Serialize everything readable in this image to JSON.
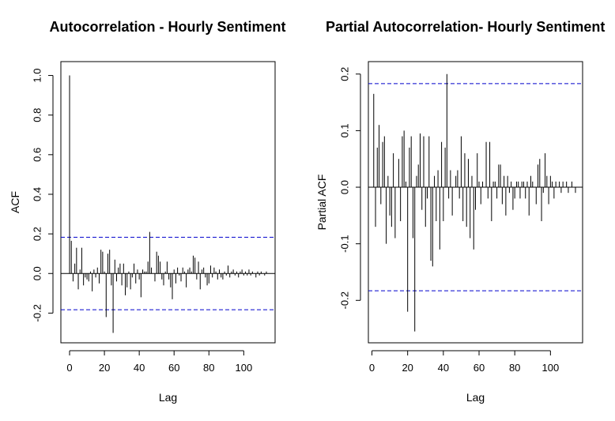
{
  "chart_data": [
    {
      "type": "bar",
      "title": "Autocorrelation - Hourly Sentiment",
      "xlabel": "Lag",
      "ylabel": "ACF",
      "xlim": [
        -5,
        118
      ],
      "ylim": [
        -0.35,
        1.07
      ],
      "xticks": [
        0,
        20,
        40,
        60,
        80,
        100
      ],
      "yticks": [
        -0.2,
        0.0,
        0.2,
        0.4,
        0.6,
        0.8,
        1.0
      ],
      "ytick_labels": [
        "-0.2",
        "0.0",
        "0.2",
        "0.4",
        "0.6",
        "0.8",
        "1.0"
      ],
      "confidence_band": [
        -0.183,
        0.183
      ],
      "confidence_color": "#0000cc",
      "bar_color": "#000000",
      "grid": false,
      "lags": [
        0,
        1,
        2,
        3,
        4,
        5,
        6,
        7,
        8,
        9,
        10,
        11,
        12,
        13,
        14,
        15,
        16,
        17,
        18,
        19,
        20,
        21,
        22,
        23,
        24,
        25,
        26,
        27,
        28,
        29,
        30,
        31,
        32,
        33,
        34,
        35,
        36,
        37,
        38,
        39,
        40,
        41,
        42,
        43,
        44,
        45,
        46,
        47,
        48,
        49,
        50,
        51,
        52,
        53,
        54,
        55,
        56,
        57,
        58,
        59,
        60,
        61,
        62,
        63,
        64,
        65,
        66,
        67,
        68,
        69,
        70,
        71,
        72,
        73,
        74,
        75,
        76,
        77,
        78,
        79,
        80,
        81,
        82,
        83,
        84,
        85,
        86,
        87,
        88,
        89,
        90,
        91,
        92,
        93,
        94,
        95,
        96,
        97,
        98,
        99,
        100,
        101,
        102,
        103,
        104,
        105,
        106,
        107,
        108,
        109,
        110,
        111,
        112,
        113,
        114
      ],
      "values": [
        1.0,
        0.165,
        -0.04,
        0.05,
        0.13,
        -0.08,
        0.02,
        0.13,
        -0.06,
        -0.02,
        -0.03,
        -0.04,
        0.01,
        -0.09,
        0.02,
        -0.02,
        0.03,
        -0.05,
        0.12,
        0.11,
        0.01,
        -0.22,
        0.1,
        0.12,
        -0.06,
        -0.3,
        0.07,
        -0.04,
        0.03,
        0.05,
        -0.06,
        0.05,
        -0.11,
        -0.07,
        0.01,
        -0.08,
        -0.02,
        0.05,
        -0.05,
        0.02,
        -0.03,
        -0.12,
        0.02,
        0.01,
        0.01,
        0.06,
        0.21,
        0.03,
        0.0,
        -0.04,
        0.11,
        0.09,
        0.06,
        -0.03,
        -0.06,
        0.01,
        0.06,
        -0.03,
        -0.07,
        -0.13,
        0.02,
        -0.05,
        0.03,
        -0.01,
        -0.04,
        0.03,
        0.01,
        -0.07,
        0.02,
        0.03,
        0.01,
        0.09,
        0.08,
        -0.03,
        0.06,
        -0.08,
        0.02,
        0.03,
        -0.02,
        -0.06,
        -0.05,
        0.04,
        -0.02,
        0.03,
        0.01,
        -0.03,
        0.02,
        -0.02,
        -0.03,
        0.01,
        -0.01,
        0.04,
        -0.02,
        0.01,
        0.02,
        -0.01,
        0.01,
        -0.02,
        0.01,
        0.02,
        -0.01,
        0.01,
        -0.01,
        0.02,
        -0.01,
        0.01,
        0.0,
        -0.02,
        0.01,
        -0.01,
        0.01,
        0.0,
        -0.01,
        0.01,
        0.0
      ]
    },
    {
      "type": "bar",
      "title": "Partial Autocorrelation- Hourly Sentiment",
      "xlabel": "Lag",
      "ylabel": "Partial ACF",
      "xlim": [
        -2,
        118
      ],
      "ylim": [
        -0.275,
        0.222
      ],
      "xticks": [
        0,
        20,
        40,
        60,
        80,
        100
      ],
      "yticks": [
        -0.2,
        -0.1,
        0.0,
        0.1,
        0.2
      ],
      "ytick_labels": [
        "-0.2",
        "-0.1",
        "0.0",
        "0.1",
        "0.2"
      ],
      "confidence_band": [
        -0.183,
        0.183
      ],
      "confidence_color": "#0000cc",
      "bar_color": "#000000",
      "grid": false,
      "lags": [
        1,
        2,
        3,
        4,
        5,
        6,
        7,
        8,
        9,
        10,
        11,
        12,
        13,
        14,
        15,
        16,
        17,
        18,
        19,
        20,
        21,
        22,
        23,
        24,
        25,
        26,
        27,
        28,
        29,
        30,
        31,
        32,
        33,
        34,
        35,
        36,
        37,
        38,
        39,
        40,
        41,
        42,
        43,
        44,
        45,
        46,
        47,
        48,
        49,
        50,
        51,
        52,
        53,
        54,
        55,
        56,
        57,
        58,
        59,
        60,
        61,
        62,
        63,
        64,
        65,
        66,
        67,
        68,
        69,
        70,
        71,
        72,
        73,
        74,
        75,
        76,
        77,
        78,
        79,
        80,
        81,
        82,
        83,
        84,
        85,
        86,
        87,
        88,
        89,
        90,
        91,
        92,
        93,
        94,
        95,
        96,
        97,
        98,
        99,
        100,
        101,
        102,
        103,
        104,
        105,
        106,
        107,
        108,
        109,
        110,
        111,
        112,
        113,
        114
      ],
      "values": [
        0.165,
        -0.07,
        0.07,
        0.11,
        -0.03,
        0.08,
        0.09,
        -0.1,
        0.02,
        -0.05,
        -0.07,
        0.06,
        -0.09,
        0.0,
        0.05,
        -0.06,
        0.09,
        0.1,
        0.01,
        -0.22,
        0.07,
        0.09,
        -0.09,
        -0.255,
        0.02,
        0.04,
        0.095,
        -0.04,
        0.09,
        -0.07,
        -0.02,
        0.09,
        -0.13,
        -0.14,
        0.02,
        -0.06,
        0.03,
        -0.11,
        0.08,
        -0.06,
        0.07,
        0.2,
        -0.02,
        0.03,
        -0.05,
        0.0,
        0.02,
        0.03,
        -0.02,
        0.09,
        -0.06,
        0.06,
        -0.07,
        0.05,
        -0.09,
        0.02,
        -0.11,
        -0.04,
        0.06,
        0.01,
        -0.03,
        0.01,
        0.0,
        0.08,
        -0.02,
        0.08,
        -0.06,
        0.01,
        0.01,
        -0.02,
        0.04,
        0.04,
        -0.03,
        0.02,
        -0.05,
        0.02,
        -0.01,
        0.01,
        -0.04,
        -0.02,
        0.01,
        0.01,
        -0.02,
        0.01,
        0.01,
        -0.02,
        0.01,
        -0.05,
        0.02,
        0.01,
        0.0,
        -0.03,
        0.04,
        0.05,
        -0.06,
        -0.01,
        0.06,
        0.02,
        -0.03,
        0.02,
        0.01,
        -0.02,
        0.01,
        0.0,
        0.01,
        -0.01,
        0.01,
        0.0,
        0.01,
        -0.01,
        0.0,
        0.01,
        0.0,
        -0.01
      ]
    }
  ]
}
